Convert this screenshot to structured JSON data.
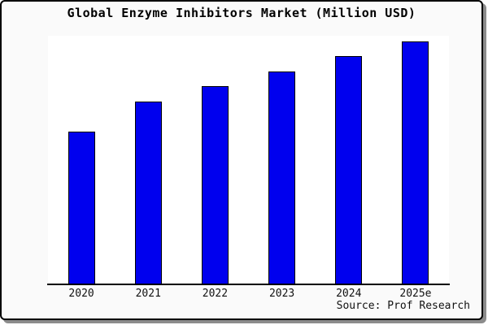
{
  "chart_data": {
    "type": "bar",
    "title": "Global Enzyme Inhibitors Market (Million USD)",
    "categories": [
      "2020",
      "2021",
      "2022",
      "2023",
      "2024",
      "2025e"
    ],
    "values": [
      188,
      225,
      244,
      262,
      281,
      299
    ],
    "value_note": "y-axis has no tick labels in the image; values are relative estimates proportional to rendered bar heights",
    "xlabel": "",
    "ylabel": "",
    "ylim": [
      0,
      306
    ],
    "grid": false,
    "legend": false,
    "bar_color": "#0000ee",
    "bar_border_color": "#000000"
  },
  "source": {
    "text": "Source: Prof Research"
  },
  "colors": {
    "canvas_bg": "#fafafa",
    "plot_bg": "#ffffff",
    "figure_border": "#000000",
    "axis_line": "#000000",
    "shadow": "#8c8c8c",
    "text": "#000000"
  }
}
